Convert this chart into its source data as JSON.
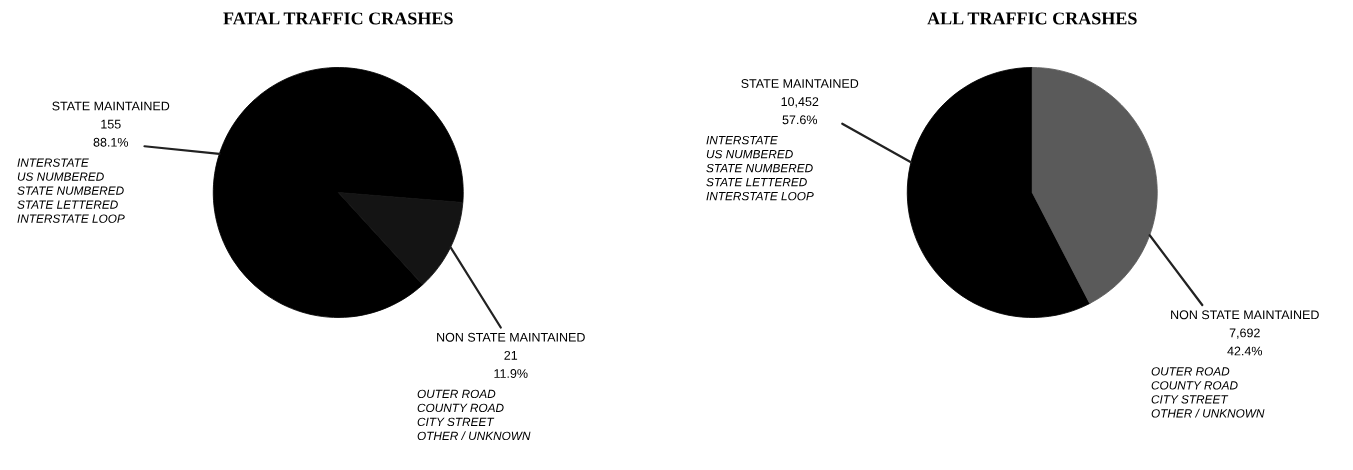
{
  "chart_data": [
    {
      "type": "pie",
      "title": "FATAL TRAFFIC CRASHES",
      "categories": [
        "STATE MAINTAINED",
        "NON STATE MAINTAINED"
      ],
      "values": [
        155,
        21
      ],
      "colors": [
        "#000000",
        "#141414"
      ],
      "value_labels": [
        "155\n88.1%",
        "21\n11.9%"
      ],
      "annotations": [
        "INTERSTATE\nUS NUMBERED\nSTATE NUMBERED\nSTATE LETTERED\nINTERSTATE LOOP",
        "OUTER ROAD\nCOUNTY ROAD\nCITY STREET\nOTHER / UNKNOWN"
      ]
    },
    {
      "type": "pie",
      "title": "ALL TRAFFIC CRASHES",
      "categories": [
        "STATE MAINTAINED",
        "NON STATE MAINTAINED"
      ],
      "values": [
        10452,
        7692
      ],
      "colors": [
        "#000000",
        "#5a5a5a"
      ],
      "value_labels": [
        "10,452\n57.6%",
        "7,692\n42.4%"
      ],
      "annotations": [
        "INTERSTATE\nUS NUMBERED\nSTATE NUMBERED\nSTATE LETTERED\nINTERSTATE LOOP",
        "OUTER ROAD\nCOUNTY ROAD\nCITY STREET\nOTHER / UNKNOWN"
      ]
    }
  ]
}
